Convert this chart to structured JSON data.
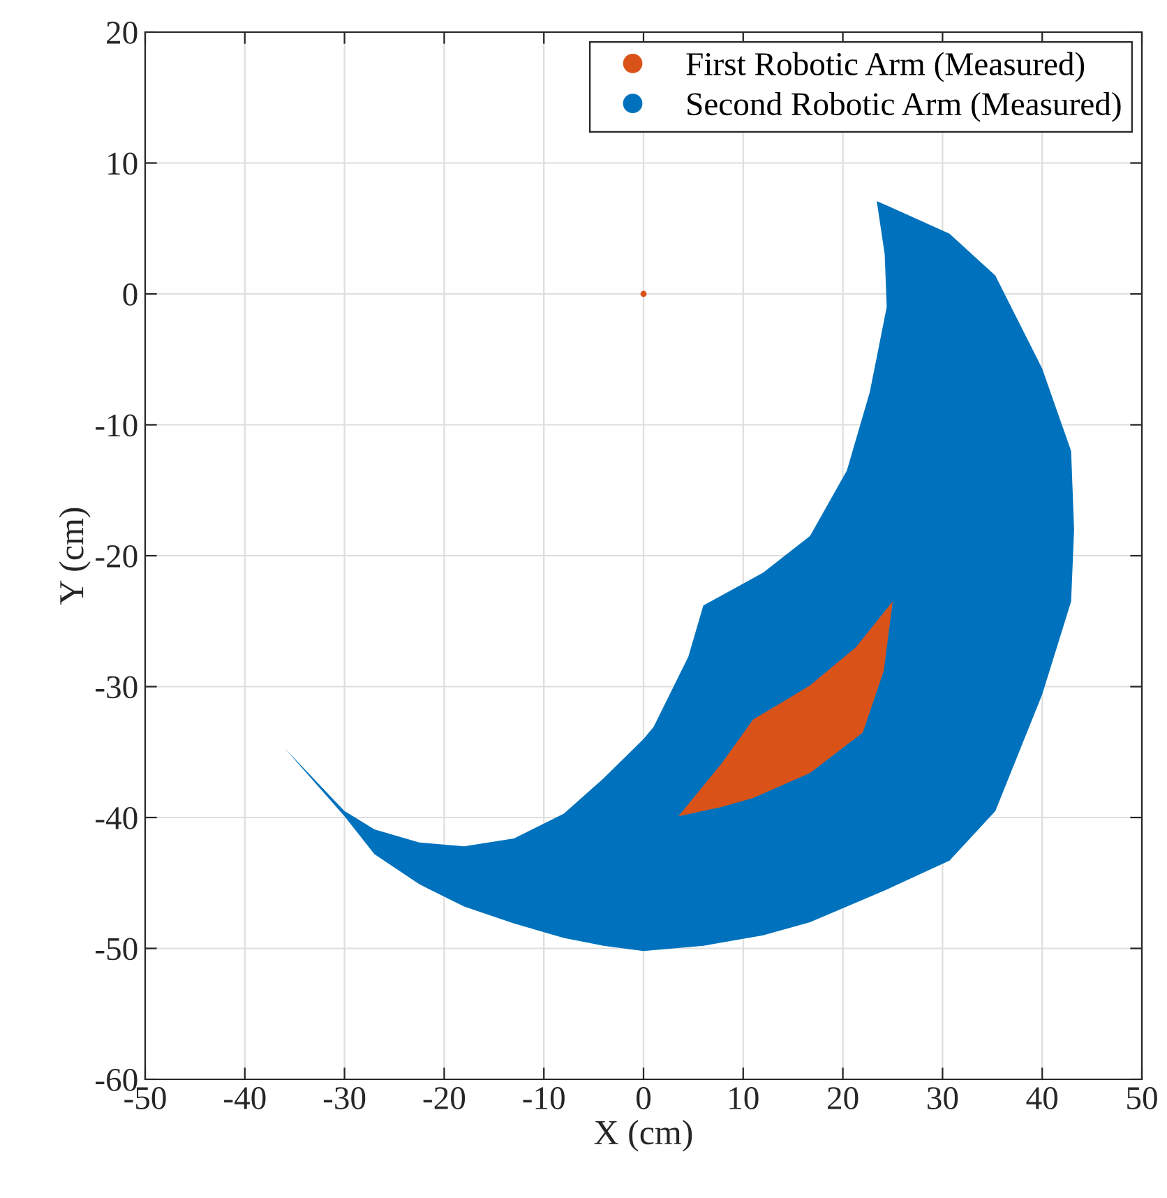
{
  "chart_data": {
    "type": "area",
    "xlabel": "X (cm)",
    "ylabel": "Y (cm)",
    "xlim": [
      -50,
      50
    ],
    "xticks": [
      -50,
      -40,
      -30,
      -20,
      -10,
      0,
      10,
      20,
      30,
      40,
      50
    ],
    "ylim": [
      -60,
      20
    ],
    "yticks": [
      -60,
      -50,
      -40,
      -30,
      -20,
      -10,
      0,
      10,
      20
    ],
    "grid": true,
    "legend": "top right",
    "series": [
      {
        "name": "Second Robotic Arm (Measured)",
        "color": "#0072bd",
        "x": [
          23.4,
          30.7,
          35.3,
          40,
          42.9,
          43.2,
          42.9,
          40,
          35.3,
          30.7,
          24.4,
          16.7,
          12,
          6,
          0,
          -4,
          -8,
          -13,
          -18,
          -22.5,
          -27,
          -30,
          -36,
          -30,
          -27,
          -22.5,
          -18,
          -13,
          -8,
          -4,
          0,
          1,
          4.5,
          6,
          12,
          16.7,
          20.4,
          22.7,
          24.4,
          24.2
        ],
        "values": [
          7.1,
          4.6,
          1.4,
          -5.7,
          -12,
          -18,
          -23.5,
          -30.6,
          -39.5,
          -43.3,
          -45.5,
          -48,
          -49,
          -49.8,
          -50.2,
          -49.8,
          -49.2,
          -48.1,
          -46.8,
          -45.1,
          -42.8,
          -39.9,
          -34.7,
          -39.5,
          -40.9,
          -41.9,
          -42.2,
          -41.6,
          -39.7,
          -37,
          -34,
          -33.1,
          -27.7,
          -23.8,
          -21.3,
          -18.5,
          -13.5,
          -7.5,
          -1,
          3
        ]
      },
      {
        "name": "First Robotic Arm (Measured)",
        "color": "#d95319",
        "x": [
          3.5,
          7.8,
          11,
          13.9,
          16.7,
          21.3,
          25,
          24.1,
          22,
          16.7,
          11,
          7.8
        ],
        "values": [
          -39.9,
          -35.9,
          -32.5,
          -31.2,
          -29.9,
          -27,
          -23.5,
          -28.8,
          -33.5,
          -36.6,
          -38.5,
          -39.2
        ]
      },
      {
        "type": "scatter",
        "color": "#d95319",
        "marker": "circle",
        "x": [
          0
        ],
        "values": [
          0
        ]
      }
    ]
  }
}
